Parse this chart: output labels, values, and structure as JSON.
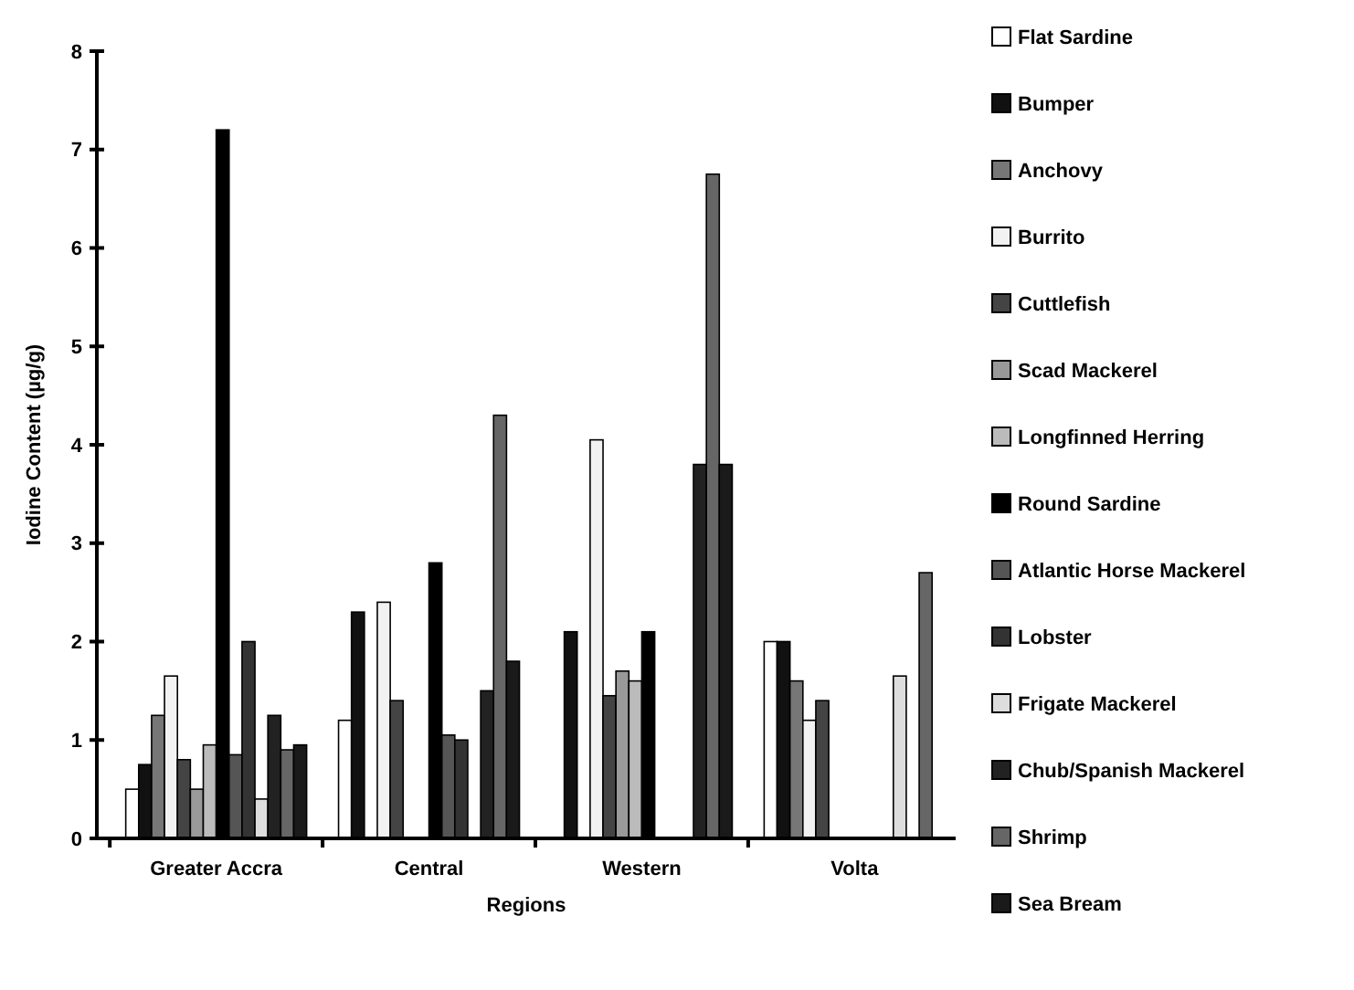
{
  "chart_data": {
    "type": "bar",
    "xlabel": "Regions",
    "ylabel": "Iodine Content (µg/g)",
    "categories": [
      "Greater Accra",
      "Central",
      "Western",
      "Volta"
    ],
    "ylim": [
      0,
      8
    ],
    "yticks": [
      0,
      1,
      2,
      3,
      4,
      5,
      6,
      7,
      8
    ],
    "grid": false,
    "legend": "right",
    "series": [
      {
        "name": "Flat Sardine",
        "color": "#ffffff",
        "values": [
          0.5,
          1.2,
          null,
          2.0
        ]
      },
      {
        "name": "Bumper",
        "color": "#111111",
        "values": [
          0.75,
          2.3,
          2.1,
          2.0
        ]
      },
      {
        "name": "Anchovy",
        "color": "#777777",
        "values": [
          1.25,
          null,
          null,
          1.6
        ]
      },
      {
        "name": "Burrito",
        "color": "#f2f2f2",
        "values": [
          1.65,
          2.4,
          4.05,
          1.2
        ]
      },
      {
        "name": "Cuttlefish",
        "color": "#444444",
        "values": [
          0.8,
          1.4,
          1.45,
          1.4
        ]
      },
      {
        "name": "Scad Mackerel",
        "color": "#999999",
        "values": [
          0.5,
          null,
          1.7,
          null
        ]
      },
      {
        "name": "Longfinned Herring",
        "color": "#bbbbbb",
        "values": [
          0.95,
          null,
          1.6,
          null
        ]
      },
      {
        "name": "Round Sardine",
        "color": "#000000",
        "values": [
          7.2,
          2.8,
          2.1,
          null
        ]
      },
      {
        "name": "Atlantic Horse Mackerel",
        "color": "#555555",
        "values": [
          0.85,
          1.05,
          null,
          null
        ]
      },
      {
        "name": "Lobster",
        "color": "#333333",
        "values": [
          2.0,
          1.0,
          null,
          null
        ]
      },
      {
        "name": "Frigate Mackerel",
        "color": "#dddddd",
        "values": [
          0.4,
          null,
          null,
          1.65
        ]
      },
      {
        "name": "Chub/Spanish Mackerel",
        "color": "#222222",
        "values": [
          1.25,
          1.5,
          3.8,
          null
        ]
      },
      {
        "name": "Shrimp",
        "color": "#666666",
        "values": [
          0.9,
          4.3,
          6.75,
          2.7
        ]
      },
      {
        "name": "Sea Bream",
        "color": "#1a1a1a",
        "values": [
          0.95,
          1.8,
          3.8,
          null
        ]
      }
    ]
  }
}
